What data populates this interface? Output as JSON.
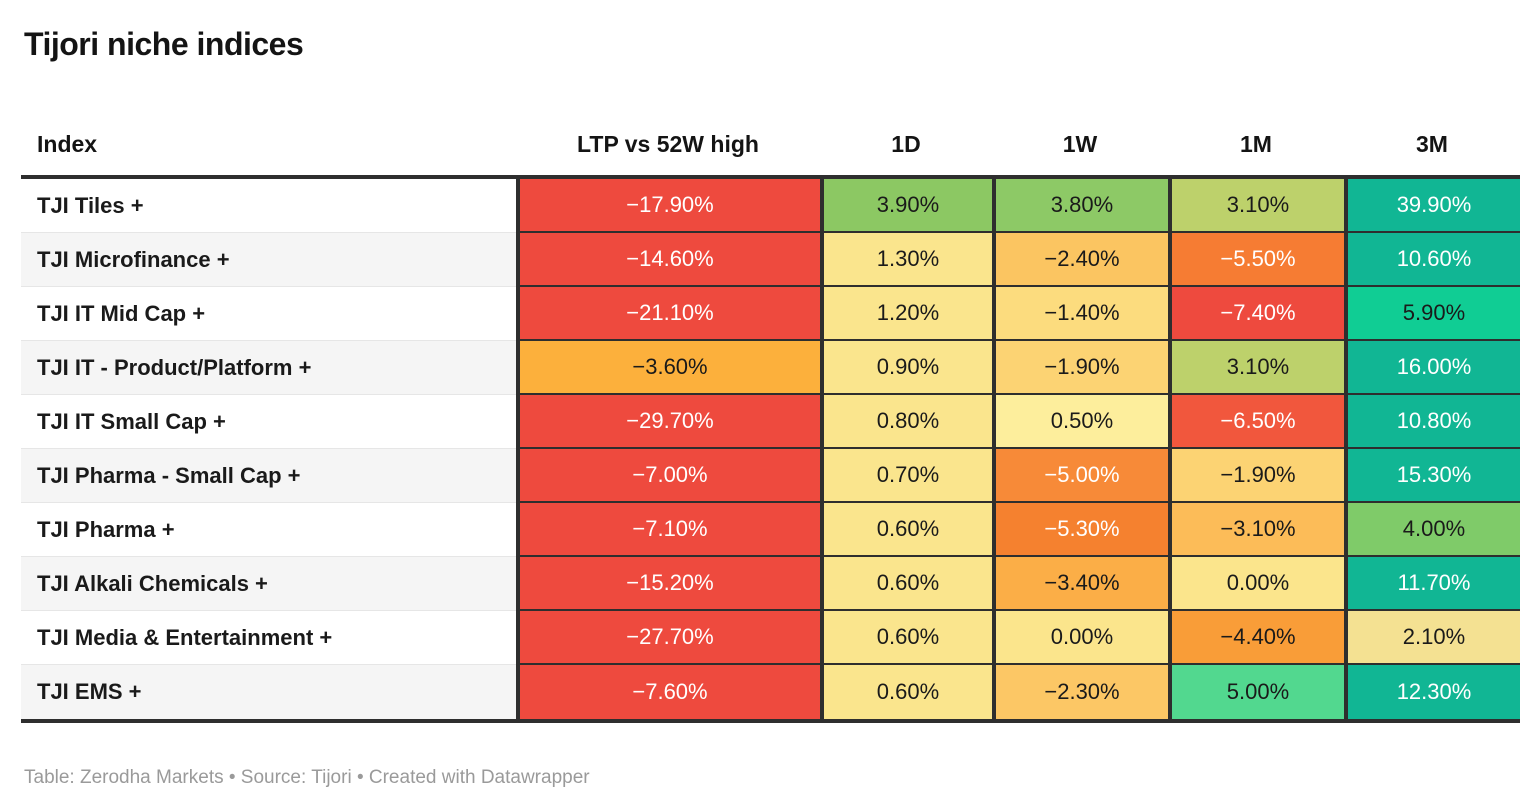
{
  "title": "Tijori niche indices",
  "header": {
    "index": "Index",
    "ltp": "LTP vs 52W high",
    "d1": "1D",
    "w1": "1W",
    "m1": "1M",
    "m3": "3M"
  },
  "rows": [
    {
      "name": "TJI Tiles +",
      "values": [
        {
          "text": "−17.90%",
          "bg": "#ee4a3e",
          "fg": "#ffffff"
        },
        {
          "text": "3.90%",
          "bg": "#8cc863",
          "fg": "#1a1a1a"
        },
        {
          "text": "3.80%",
          "bg": "#8dc966",
          "fg": "#1a1a1a"
        },
        {
          "text": "3.10%",
          "bg": "#bdd16b",
          "fg": "#1a1a1a"
        },
        {
          "text": "39.90%",
          "bg": "#11b694",
          "fg": "#ffffff"
        }
      ]
    },
    {
      "name": "TJI Microfinance +",
      "values": [
        {
          "text": "−14.60%",
          "bg": "#ee4a3e",
          "fg": "#ffffff"
        },
        {
          "text": "1.30%",
          "bg": "#fae58d",
          "fg": "#1a1a1a"
        },
        {
          "text": "−2.40%",
          "bg": "#fbc561",
          "fg": "#1a1a1a"
        },
        {
          "text": "−5.50%",
          "bg": "#f67c33",
          "fg": "#ffffff"
        },
        {
          "text": "10.60%",
          "bg": "#11b694",
          "fg": "#ffffff"
        }
      ]
    },
    {
      "name": "TJI IT Mid Cap +",
      "values": [
        {
          "text": "−21.10%",
          "bg": "#ee4a3e",
          "fg": "#ffffff"
        },
        {
          "text": "1.20%",
          "bg": "#fae58d",
          "fg": "#1a1a1a"
        },
        {
          "text": "−1.40%",
          "bg": "#fcdc7e",
          "fg": "#1a1a1a"
        },
        {
          "text": "−7.40%",
          "bg": "#ee4a3e",
          "fg": "#ffffff"
        },
        {
          "text": "5.90%",
          "bg": "#10cd94",
          "fg": "#1a1a1a"
        }
      ]
    },
    {
      "name": "TJI IT - Product/Platform +",
      "values": [
        {
          "text": "−3.60%",
          "bg": "#fcb03c",
          "fg": "#1a1a1a"
        },
        {
          "text": "0.90%",
          "bg": "#fae58d",
          "fg": "#1a1a1a"
        },
        {
          "text": "−1.90%",
          "bg": "#fcd373",
          "fg": "#1a1a1a"
        },
        {
          "text": "3.10%",
          "bg": "#bdd16b",
          "fg": "#1a1a1a"
        },
        {
          "text": "16.00%",
          "bg": "#11b694",
          "fg": "#ffffff"
        }
      ]
    },
    {
      "name": "TJI IT Small Cap +",
      "values": [
        {
          "text": "−29.70%",
          "bg": "#ee4a3e",
          "fg": "#ffffff"
        },
        {
          "text": "0.80%",
          "bg": "#fae58d",
          "fg": "#1a1a1a"
        },
        {
          "text": "0.50%",
          "bg": "#fdee9c",
          "fg": "#1a1a1a"
        },
        {
          "text": "−6.50%",
          "bg": "#f1573d",
          "fg": "#ffffff"
        },
        {
          "text": "10.80%",
          "bg": "#11b694",
          "fg": "#ffffff"
        }
      ]
    },
    {
      "name": "TJI Pharma - Small Cap +",
      "values": [
        {
          "text": "−7.00%",
          "bg": "#ee4a3e",
          "fg": "#ffffff"
        },
        {
          "text": "0.70%",
          "bg": "#fae58d",
          "fg": "#1a1a1a"
        },
        {
          "text": "−5.00%",
          "bg": "#f78a38",
          "fg": "#ffffff"
        },
        {
          "text": "−1.90%",
          "bg": "#fcd373",
          "fg": "#1a1a1a"
        },
        {
          "text": "15.30%",
          "bg": "#11b694",
          "fg": "#ffffff"
        }
      ]
    },
    {
      "name": "TJI Pharma +",
      "values": [
        {
          "text": "−7.10%",
          "bg": "#ee4a3e",
          "fg": "#ffffff"
        },
        {
          "text": "0.60%",
          "bg": "#fae58d",
          "fg": "#1a1a1a"
        },
        {
          "text": "−5.30%",
          "bg": "#f5812f",
          "fg": "#ffffff"
        },
        {
          "text": "−3.10%",
          "bg": "#fcbc58",
          "fg": "#1a1a1a"
        },
        {
          "text": "4.00%",
          "bg": "#7fcb69",
          "fg": "#1a1a1a"
        }
      ]
    },
    {
      "name": "TJI Alkali Chemicals +",
      "values": [
        {
          "text": "−15.20%",
          "bg": "#ee4a3e",
          "fg": "#ffffff"
        },
        {
          "text": "0.60%",
          "bg": "#fae58d",
          "fg": "#1a1a1a"
        },
        {
          "text": "−3.40%",
          "bg": "#fbae47",
          "fg": "#1a1a1a"
        },
        {
          "text": "0.00%",
          "bg": "#fbe58c",
          "fg": "#1a1a1a"
        },
        {
          "text": "11.70%",
          "bg": "#11b694",
          "fg": "#ffffff"
        }
      ]
    },
    {
      "name": "TJI Media & Entertainment +",
      "values": [
        {
          "text": "−27.70%",
          "bg": "#ee4a3e",
          "fg": "#ffffff"
        },
        {
          "text": "0.60%",
          "bg": "#fae58d",
          "fg": "#1a1a1a"
        },
        {
          "text": "0.00%",
          "bg": "#fbe58c",
          "fg": "#1a1a1a"
        },
        {
          "text": "−4.40%",
          "bg": "#f99d38",
          "fg": "#1a1a1a"
        },
        {
          "text": "2.10%",
          "bg": "#f4e192",
          "fg": "#1a1a1a"
        }
      ]
    },
    {
      "name": "TJI EMS +",
      "values": [
        {
          "text": "−7.60%",
          "bg": "#ee4a3e",
          "fg": "#ffffff"
        },
        {
          "text": "0.60%",
          "bg": "#fae58d",
          "fg": "#1a1a1a"
        },
        {
          "text": "−2.30%",
          "bg": "#fcc765",
          "fg": "#1a1a1a"
        },
        {
          "text": "5.00%",
          "bg": "#52d88f",
          "fg": "#1a1a1a"
        },
        {
          "text": "12.30%",
          "bg": "#11b694",
          "fg": "#ffffff"
        }
      ]
    }
  ],
  "footer": "Table: Zerodha Markets • Source: Tijori • Created with Datawrapper",
  "colors": {
    "border": "#2e2e2e",
    "row_stripe": "#f5f5f5",
    "footer_text": "#9a9a9a",
    "scale_negative_max": "#ee4a3e",
    "scale_neutral": "#fbe58c",
    "scale_positive_max": "#11b694"
  },
  "chart_data": {
    "type": "table",
    "title": "Tijori niche indices",
    "columns": [
      "Index",
      "LTP vs 52W high",
      "1D",
      "1W",
      "1M",
      "3M"
    ],
    "rows": [
      [
        "TJI Tiles +",
        -17.9,
        3.9,
        3.8,
        3.1,
        39.9
      ],
      [
        "TJI Microfinance +",
        -14.6,
        1.3,
        -2.4,
        -5.5,
        10.6
      ],
      [
        "TJI IT Mid Cap +",
        -21.1,
        1.2,
        -1.4,
        -7.4,
        5.9
      ],
      [
        "TJI IT - Product/Platform +",
        -3.6,
        0.9,
        -1.9,
        3.1,
        16.0
      ],
      [
        "TJI IT Small Cap +",
        -29.7,
        0.8,
        0.5,
        -6.5,
        10.8
      ],
      [
        "TJI Pharma - Small Cap +",
        -7.0,
        0.7,
        -5.0,
        -1.9,
        15.3
      ],
      [
        "TJI Pharma +",
        -7.1,
        0.6,
        -5.3,
        -3.1,
        4.0
      ],
      [
        "TJI Alkali Chemicals +",
        -15.2,
        0.6,
        -3.4,
        0.0,
        11.7
      ],
      [
        "TJI Media & Entertainment +",
        -27.7,
        0.6,
        0.0,
        -4.4,
        2.1
      ],
      [
        "TJI EMS +",
        -7.6,
        0.6,
        -2.3,
        5.0,
        12.3
      ]
    ],
    "units": "percent",
    "note": "heatmap-colored table, red = negative, yellow = near zero, green/teal = positive"
  }
}
